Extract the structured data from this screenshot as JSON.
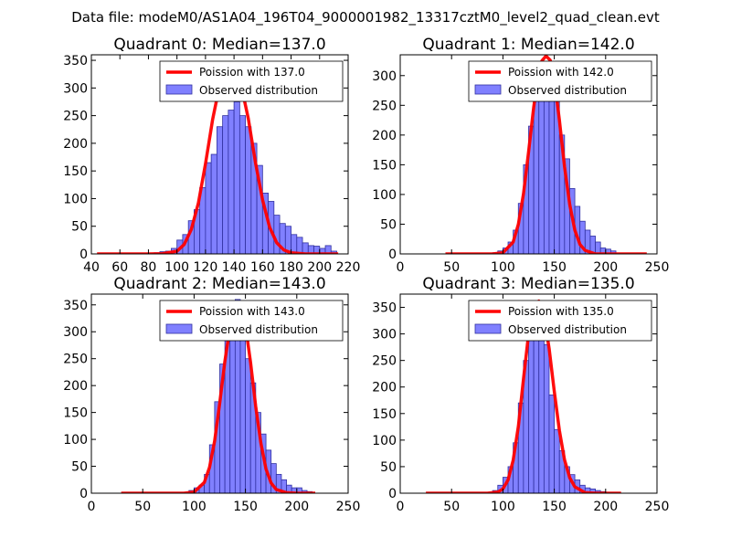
{
  "figure": {
    "suptitle": "Data file: modeM0/AS1A04_196T04_9000001982_13317cztM0_level2_quad_clean.evt"
  },
  "colors": {
    "bar_fill": "#8080ff",
    "bar_edge": "#3030a0",
    "line": "#ff0000",
    "axes": "#000000",
    "background": "#ffffff"
  },
  "chart_data": [
    {
      "type": "bar",
      "title": "Quadrant 0: Median=137.0",
      "xlabel": "",
      "ylabel": "",
      "xlim": [
        40,
        220
      ],
      "ylim": [
        0,
        360
      ],
      "xticks": [
        40,
        60,
        80,
        100,
        120,
        140,
        160,
        180,
        200,
        220
      ],
      "yticks": [
        0,
        50,
        100,
        150,
        200,
        250,
        300,
        350
      ],
      "legend_position": "top-right",
      "series": [
        {
          "name": "Observed distribution",
          "kind": "histogram",
          "bin_edges": [
            84,
            88,
            92,
            96,
            100,
            104,
            108,
            112,
            116,
            120,
            124,
            128,
            132,
            136,
            140,
            144,
            148,
            152,
            156,
            160,
            164,
            168,
            172,
            176,
            180,
            184,
            188,
            192,
            196,
            200,
            204,
            208,
            212
          ],
          "values": [
            2,
            4,
            5,
            10,
            25,
            35,
            60,
            80,
            120,
            165,
            180,
            230,
            250,
            260,
            275,
            250,
            230,
            200,
            160,
            110,
            95,
            70,
            55,
            50,
            35,
            30,
            20,
            15,
            14,
            10,
            15,
            5
          ]
        },
        {
          "name": "Poission with 137.0",
          "kind": "line",
          "x": [
            44,
            80,
            90,
            100,
            105,
            110,
            115,
            120,
            125,
            130,
            133,
            137,
            140,
            145,
            150,
            155,
            160,
            165,
            170,
            175,
            180,
            190,
            200,
            213
          ],
          "y": [
            0,
            0,
            0.5,
            5,
            17,
            44,
            92,
            163,
            243,
            306,
            332,
            340,
            337,
            305,
            245,
            166,
            98,
            48,
            20,
            7,
            2,
            0,
            0,
            0
          ]
        }
      ]
    },
    {
      "type": "bar",
      "title": "Quadrant 1: Median=142.0",
      "xlabel": "",
      "ylabel": "",
      "xlim": [
        0,
        250
      ],
      "ylim": [
        0,
        335
      ],
      "xticks": [
        0,
        50,
        100,
        150,
        200,
        250
      ],
      "yticks": [
        0,
        50,
        100,
        150,
        200,
        250,
        300
      ],
      "legend_position": "top-right",
      "series": [
        {
          "name": "Observed distribution",
          "kind": "histogram",
          "bin_edges": [
            90,
            95,
            100,
            105,
            110,
            115,
            120,
            125,
            130,
            135,
            140,
            145,
            150,
            155,
            160,
            165,
            170,
            175,
            180,
            185,
            190,
            195,
            200,
            205,
            210
          ],
          "values": [
            2,
            5,
            10,
            20,
            40,
            85,
            150,
            215,
            270,
            305,
            320,
            300,
            275,
            200,
            160,
            110,
            80,
            55,
            40,
            30,
            20,
            10,
            8,
            5
          ]
        },
        {
          "name": "Poission with 142.0",
          "kind": "line",
          "x": [
            44,
            90,
            100,
            110,
            115,
            120,
            125,
            130,
            135,
            138,
            142,
            146,
            150,
            155,
            160,
            165,
            170,
            175,
            180,
            190,
            200,
            240
          ],
          "y": [
            0,
            0,
            2,
            20,
            50,
            101,
            172,
            247,
            305,
            325,
            333,
            326,
            294,
            225,
            147,
            83,
            40,
            16,
            6,
            0,
            0,
            0
          ]
        }
      ]
    },
    {
      "type": "bar",
      "title": "Quadrant 2: Median=143.0",
      "xlabel": "",
      "ylabel": "",
      "xlim": [
        0,
        250
      ],
      "ylim": [
        0,
        370
      ],
      "xticks": [
        0,
        50,
        100,
        150,
        200,
        250
      ],
      "yticks": [
        0,
        50,
        100,
        150,
        200,
        250,
        300,
        350
      ],
      "legend_position": "top-right",
      "series": [
        {
          "name": "Observed distribution",
          "kind": "histogram",
          "bin_edges": [
            95,
            100,
            105,
            110,
            115,
            120,
            125,
            130,
            135,
            140,
            145,
            150,
            155,
            160,
            165,
            170,
            175,
            180,
            185,
            190,
            195,
            200,
            205,
            210,
            215
          ],
          "values": [
            5,
            10,
            15,
            35,
            90,
            170,
            240,
            305,
            340,
            360,
            325,
            250,
            205,
            150,
            110,
            80,
            55,
            35,
            25,
            15,
            10,
            10,
            5,
            3
          ]
        },
        {
          "name": "Poission with 143.0",
          "kind": "line",
          "x": [
            29,
            90,
            100,
            110,
            115,
            120,
            125,
            130,
            135,
            139,
            143,
            147,
            150,
            155,
            160,
            165,
            170,
            175,
            180,
            190,
            200,
            218
          ],
          "y": [
            0,
            0,
            2,
            20,
            48,
            97,
            168,
            245,
            308,
            338,
            343,
            334,
            312,
            243,
            162,
            93,
            45,
            19,
            7,
            1,
            0,
            0
          ]
        }
      ]
    },
    {
      "type": "bar",
      "title": "Quadrant 3: Median=135.0",
      "xlabel": "",
      "ylabel": "",
      "xlim": [
        0,
        250
      ],
      "ylim": [
        0,
        375
      ],
      "xticks": [
        0,
        50,
        100,
        150,
        200,
        250
      ],
      "yticks": [
        0,
        50,
        100,
        150,
        200,
        250,
        300,
        350
      ],
      "legend_position": "top-right",
      "series": [
        {
          "name": "Observed distribution",
          "kind": "histogram",
          "bin_edges": [
            90,
            95,
            100,
            105,
            110,
            115,
            120,
            125,
            130,
            135,
            140,
            145,
            150,
            155,
            160,
            165,
            170,
            175,
            180,
            185,
            190,
            195,
            200
          ],
          "values": [
            5,
            15,
            30,
            50,
            95,
            170,
            250,
            320,
            355,
            345,
            280,
            185,
            120,
            80,
            50,
            35,
            25,
            15,
            10,
            8,
            5,
            3
          ]
        },
        {
          "name": "Poission with 135.0",
          "kind": "line",
          "x": [
            25,
            85,
            95,
            100,
            105,
            110,
            115,
            120,
            125,
            130,
            135,
            140,
            145,
            150,
            155,
            160,
            165,
            170,
            180,
            190,
            215
          ],
          "y": [
            0,
            0,
            2,
            8,
            25,
            62,
            126,
            215,
            300,
            350,
            362,
            335,
            272,
            192,
            118,
            63,
            29,
            12,
            1,
            0,
            0
          ]
        }
      ]
    }
  ]
}
